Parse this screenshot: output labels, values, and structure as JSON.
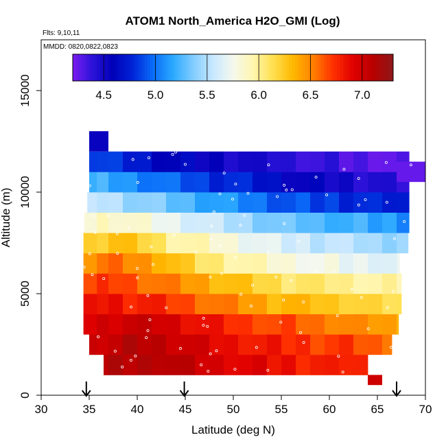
{
  "chart_data": {
    "type": "heatmap",
    "title": "ATOM1 North_America H2O_GMI (Log)",
    "flights_label": "Flts: 9,10,11",
    "dates_label": "MMDD: 0820,0822,0823",
    "xlabel": "Latitude (deg N)",
    "ylabel": "Altitude (m)",
    "xlim": [
      30,
      70
    ],
    "ylim": [
      0,
      17500
    ],
    "x_ticks": [
      30,
      35,
      40,
      45,
      50,
      55,
      60,
      65,
      70
    ],
    "y_ticks": [
      0,
      5000,
      10000,
      15000
    ],
    "x_tick_labels": [
      "30",
      "35",
      "40",
      "45",
      "50",
      "55",
      "60",
      "65",
      "70"
    ],
    "y_tick_labels": [
      "0",
      "5000",
      "10000",
      "15000"
    ],
    "colorbar": {
      "min": 4.2,
      "max": 7.3,
      "ticks": [
        4.5,
        5.0,
        5.5,
        6.0,
        6.5,
        7.0
      ],
      "tick_labels": [
        "4.5",
        "5.0",
        "5.5",
        "6.0",
        "6.5",
        "7.0"
      ],
      "colors": [
        "#7a1cf0",
        "#2a12d8",
        "#0000b8",
        "#0024d8",
        "#0a6cf8",
        "#2aa8ff",
        "#80ccff",
        "#c8e8ff",
        "#f4f8ee",
        "#fff6b0",
        "#ffe050",
        "#ffb800",
        "#ff8000",
        "#ff3000",
        "#e00000",
        "#b80000",
        "#8e1818"
      ]
    },
    "lat_edges": [
      34.4,
      35.8,
      37.0,
      38.5,
      40.0,
      41.5,
      43.0,
      44.5,
      46.0,
      47.5,
      49.0,
      50.5,
      52.0,
      53.5,
      55.0,
      56.5,
      58.0,
      59.5,
      61.0,
      62.5,
      64.0,
      65.5,
      67.0,
      68.3
    ],
    "alt_edges": [
      1000,
      2000,
      3000,
      4000,
      5000,
      6000,
      7000,
      8000,
      9000,
      10000,
      11000,
      12000
    ],
    "lat_extent_by_band": [
      [
        36.5,
        64.0
      ],
      [
        35.0,
        66.5
      ],
      [
        34.0,
        67.2
      ],
      [
        33.8,
        67.5
      ],
      [
        34.0,
        67.5
      ],
      [
        34.0,
        67.3
      ],
      [
        34.0,
        68.2
      ],
      [
        34.5,
        68.5
      ],
      [
        34.8,
        68.6
      ],
      [
        35.0,
        68.7
      ],
      [
        35.0,
        69.0
      ],
      [
        35.2,
        67.0
      ]
    ],
    "values_by_band": [
      [
        7.05,
        7.08,
        7.1,
        7.1,
        7.12,
        7.15,
        7.1,
        7.05,
        7.0,
        6.95,
        6.95,
        6.9,
        6.9,
        6.85,
        6.85,
        6.8,
        6.8,
        6.75,
        6.8,
        6.75,
        6.7,
        6.7,
        6.7
      ],
      [
        7.0,
        7.05,
        7.05,
        7.1,
        7.1,
        7.08,
        7.05,
        7.0,
        6.95,
        6.9,
        6.85,
        6.85,
        6.8,
        6.8,
        6.75,
        6.75,
        6.7,
        6.7,
        6.7,
        6.65,
        6.6,
        6.6,
        6.55
      ],
      [
        6.95,
        6.98,
        7.0,
        7.02,
        7.0,
        7.0,
        6.95,
        6.9,
        6.85,
        6.8,
        6.75,
        6.7,
        6.7,
        6.65,
        6.65,
        6.6,
        6.55,
        6.55,
        6.5,
        6.45,
        6.45,
        6.4,
        6.4
      ],
      [
        6.8,
        6.85,
        6.85,
        6.8,
        6.8,
        6.75,
        6.7,
        6.65,
        6.6,
        6.55,
        6.5,
        6.45,
        6.4,
        6.35,
        6.35,
        6.3,
        6.3,
        6.25,
        6.25,
        6.2,
        6.15,
        6.15,
        6.1
      ],
      [
        6.65,
        6.7,
        6.7,
        6.65,
        6.6,
        6.55,
        6.5,
        6.45,
        6.4,
        6.35,
        6.3,
        6.25,
        6.2,
        6.15,
        6.1,
        6.1,
        6.05,
        6.05,
        6.0,
        6.0,
        5.95,
        5.95,
        5.95
      ],
      [
        6.5,
        6.55,
        6.55,
        6.5,
        6.45,
        6.4,
        6.3,
        6.2,
        6.1,
        6.05,
        6.0,
        5.95,
        5.9,
        5.85,
        5.8,
        5.8,
        5.75,
        5.75,
        5.7,
        5.7,
        5.7,
        5.65,
        5.65
      ],
      [
        6.2,
        6.25,
        6.3,
        6.25,
        6.2,
        6.1,
        6.0,
        5.95,
        5.9,
        5.85,
        5.8,
        5.75,
        5.7,
        5.65,
        5.6,
        5.6,
        5.55,
        5.55,
        5.5,
        5.5,
        5.45,
        5.45,
        5.45
      ],
      [
        5.85,
        5.9,
        5.9,
        5.85,
        5.8,
        5.75,
        5.7,
        5.65,
        5.6,
        5.55,
        5.5,
        5.45,
        5.4,
        5.35,
        5.3,
        5.3,
        5.25,
        5.25,
        5.2,
        5.2,
        5.15,
        5.15,
        5.1
      ],
      [
        5.5,
        5.55,
        5.5,
        5.45,
        5.4,
        5.35,
        5.3,
        5.25,
        5.2,
        5.15,
        5.1,
        5.05,
        5.0,
        4.95,
        4.9,
        4.9,
        4.85,
        4.85,
        4.8,
        4.8,
        4.75,
        4.75,
        4.7
      ],
      [
        5.2,
        5.2,
        5.15,
        5.1,
        5.05,
        5.0,
        4.95,
        4.9,
        4.85,
        4.8,
        4.8,
        4.75,
        4.7,
        4.65,
        4.6,
        4.55,
        4.55,
        4.5,
        4.5,
        4.45,
        4.45,
        4.4,
        4.4
      ],
      [
        4.9,
        4.85,
        4.8,
        4.75,
        4.7,
        4.65,
        4.6,
        4.6,
        4.55,
        4.55,
        4.5,
        4.5,
        4.45,
        4.45,
        4.4,
        4.4,
        4.35,
        4.35,
        4.3,
        4.3,
        4.3,
        4.25,
        4.25
      ],
      [
        4.7,
        4.65,
        4.6,
        4.6,
        4.55,
        4.55,
        4.5,
        4.5,
        4.45,
        4.45,
        4.4,
        4.4,
        4.35,
        4.35,
        4.3,
        4.3,
        4.25,
        4.25,
        4.2,
        4.2,
        4.2,
        4.2,
        4.2
      ]
    ],
    "extra_cells": [
      {
        "lat0": 35.0,
        "lat1": 37.0,
        "alt0": 12000,
        "alt1": 13000,
        "value": 4.55
      },
      {
        "lat0": 64.0,
        "lat1": 65.5,
        "alt0": 500,
        "alt1": 1000,
        "value": 7.0
      },
      {
        "lat0": 67.0,
        "lat1": 70.0,
        "alt0": 10500,
        "alt1": 11500,
        "value": 4.25
      }
    ],
    "arrows_latitude": [
      34.7,
      44.9,
      67.0
    ]
  }
}
